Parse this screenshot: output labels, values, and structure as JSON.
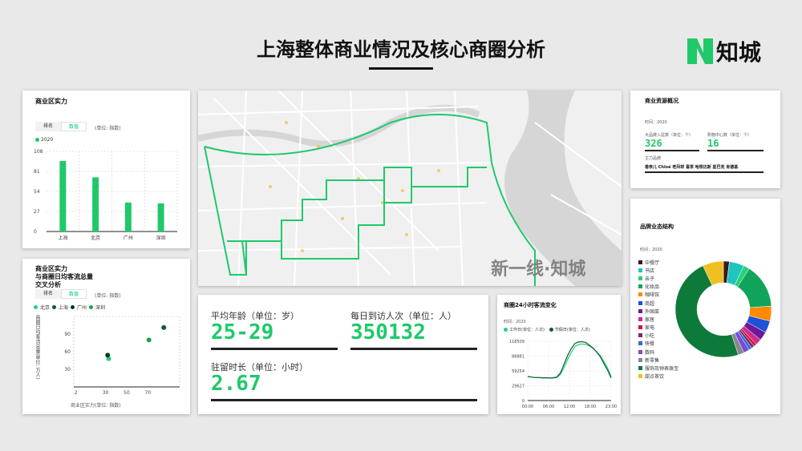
{
  "header": {
    "title": "上海整体商业情况及核心商圈分析",
    "logo_text": "知城"
  },
  "commerce_strength": {
    "title": "商业区实力",
    "tabs": [
      "排名",
      "数值"
    ],
    "unit": "(单位: 指数)",
    "legend": "2020"
  },
  "cross_analysis": {
    "title_lines": [
      "商业区实力",
      "与商圈日均客流总量",
      "交叉分析"
    ],
    "tabs": [
      "排名",
      "数值"
    ],
    "unit": "(单位: 指数)",
    "legend": [
      "北京",
      "上海",
      "广州",
      "深圳"
    ],
    "y_axis_label": "商圈日均客流总量(单位: 万人)",
    "x_axis_label": "商业区实力(单位: 指数)",
    "y_ticks": [
      "90",
      "60",
      "30"
    ],
    "x_ticks": [
      "2",
      "30",
      "50",
      "70"
    ]
  },
  "map": {
    "watermark": "新一线·知城"
  },
  "stats": {
    "age_label": "平均年龄（单位：岁）",
    "age_value": "25-29",
    "visitors_label": "每日到访人次（单位：人）",
    "visitors_value": "350132",
    "stay_label": "驻留时长（单位：小时）",
    "stay_value": "2.67"
  },
  "resources": {
    "title": "商业资源概况",
    "year": "时间：2020",
    "brands_label": "大品牌入驻数（单位：个）",
    "brands_value": "326",
    "malls_label": "购物中心数（单位：个）",
    "malls_value": "16",
    "main_brands_label": "主力品牌",
    "main_brands": "香奈儿 Chloé 老凤祥 喜茶 哈根达斯 星巴克 肯德基"
  },
  "brand_structure": {
    "title": "品牌业态结构",
    "year": "时间：2020",
    "legend": [
      "中餐厅",
      "书店",
      "亲子",
      "化妆品",
      "咖啡馆",
      "商超",
      "外国菜",
      "家居",
      "家电",
      "小吃",
      "快餐",
      "数码",
      "新零售",
      "服饰及钟表珠宝",
      "甜点茶饮"
    ]
  },
  "flow_chart": {
    "title": "商圈24小时客流变化",
    "year": "时间：2020",
    "legend": [
      "工作日(单位：人次)",
      "节假日(单位：人次)"
    ]
  },
  "colors": {
    "accent": "#1fc96a",
    "dark_green": "#0d5c2e",
    "mid_green": "#18a552"
  },
  "chart_data": [
    {
      "type": "bar",
      "categories": [
        "上海",
        "北京",
        "广州",
        "深圳"
      ],
      "series": [
        {
          "name": "2020",
          "values": [
            95,
            73,
            39,
            38
          ]
        }
      ],
      "ylim": [
        0,
        108
      ],
      "yticks": [
        0,
        27,
        54,
        81,
        108
      ]
    },
    {
      "type": "scatter",
      "series": [
        {
          "name": "北京",
          "points": [
            [
              33,
              48
            ]
          ]
        },
        {
          "name": "上海",
          "points": [
            [
              85,
              101
            ]
          ]
        },
        {
          "name": "广州",
          "points": [
            [
              32,
              54
            ]
          ]
        },
        {
          "name": "深圳",
          "points": [
            [
              71,
              80
            ]
          ]
        }
      ],
      "xlim": [
        0,
        100
      ],
      "ylim": [
        0,
        120
      ]
    },
    {
      "type": "line",
      "x": [
        0,
        1,
        2,
        3,
        4,
        5,
        6,
        7,
        8,
        9,
        10,
        11,
        12,
        13,
        14,
        15,
        16,
        17,
        18,
        19,
        20,
        21,
        22,
        23
      ],
      "xticks": [
        "00:00",
        "06:00",
        "12:00",
        "18:00",
        "23:00"
      ],
      "yticks": [
        "0",
        "29627",
        "59254",
        "88881",
        "118509"
      ],
      "ylim": [
        0,
        118509
      ],
      "series": [
        {
          "name": "工作日",
          "values": [
            48000,
            47000,
            46000,
            46000,
            45500,
            45500,
            45000,
            45000,
            46000,
            52000,
            65000,
            82000,
            96000,
            108000,
            112000,
            113000,
            112000,
            109000,
            104000,
            98000,
            90000,
            78000,
            65000,
            48000
          ]
        },
        {
          "name": "节假日",
          "values": [
            48000,
            47000,
            46000,
            46000,
            45500,
            45500,
            45000,
            45500,
            47000,
            55000,
            72000,
            90000,
            104000,
            114000,
            117000,
            117500,
            116000,
            111000,
            105000,
            97000,
            88000,
            74000,
            61000,
            45000
          ]
        }
      ]
    },
    {
      "type": "pie",
      "labels": [
        "中餐厅",
        "书店",
        "亲子",
        "化妆品",
        "咖啡馆",
        "商超",
        "外国菜",
        "家居",
        "家电",
        "小吃",
        "快餐",
        "数码",
        "新零售",
        "服饰及钟表珠宝",
        "甜点茶饮"
      ],
      "values": [
        2,
        5,
        2,
        15,
        5,
        4,
        3,
        2,
        1,
        1,
        1,
        2,
        2,
        48,
        7
      ],
      "colors": [
        "#3a1a1a",
        "#20c5c0",
        "#27d07a",
        "#10a45a",
        "#ff8a00",
        "#1e50d8",
        "#6a1a9a",
        "#d42a8a",
        "#c81c3a",
        "#7a2a6a",
        "#2a6ad8",
        "#7a4ad8",
        "#888888",
        "#0d7a3a",
        "#f0c020"
      ]
    }
  ]
}
